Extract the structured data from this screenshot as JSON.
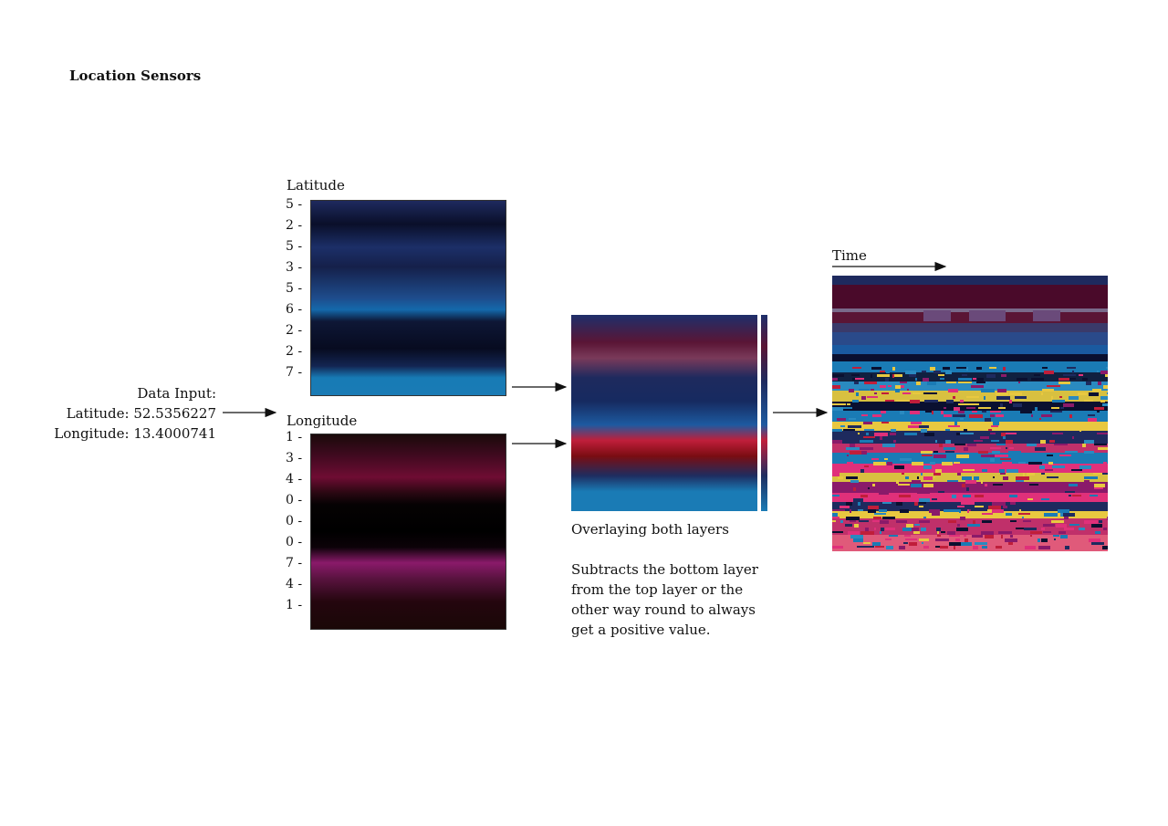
{
  "title": "Location Sensors",
  "input": {
    "heading": "Data Input:",
    "latitude_line": "Latitude: 52.5356227",
    "longitude_line": "Longitude: 13.4000741"
  },
  "latitude": {
    "label": "Latitude",
    "digits": [
      "5 -",
      "2 -",
      "5 -",
      "3 -",
      "5 -",
      "6 -",
      "2 -",
      "2 -",
      "7 -"
    ]
  },
  "longitude": {
    "label": "Longitude",
    "digits": [
      "1 -",
      "3 -",
      "4 -",
      "0 -",
      "0 -",
      "0 -",
      "7 -",
      "4 -",
      "1 -"
    ]
  },
  "overlay": {
    "caption": "Overlaying both layers",
    "description_lines": [
      "Subtracts the bottom layer",
      "from the top layer or the",
      "other way round to always",
      "get a positive value."
    ]
  },
  "time": {
    "label": "Time"
  },
  "colors": {
    "navy": "#1e2a5e",
    "blue": "#1a7bb5",
    "crimson": "#c01e3a",
    "magenta": "#8a1a6a",
    "yellow": "#e8c840",
    "pink": "#e0307a"
  }
}
